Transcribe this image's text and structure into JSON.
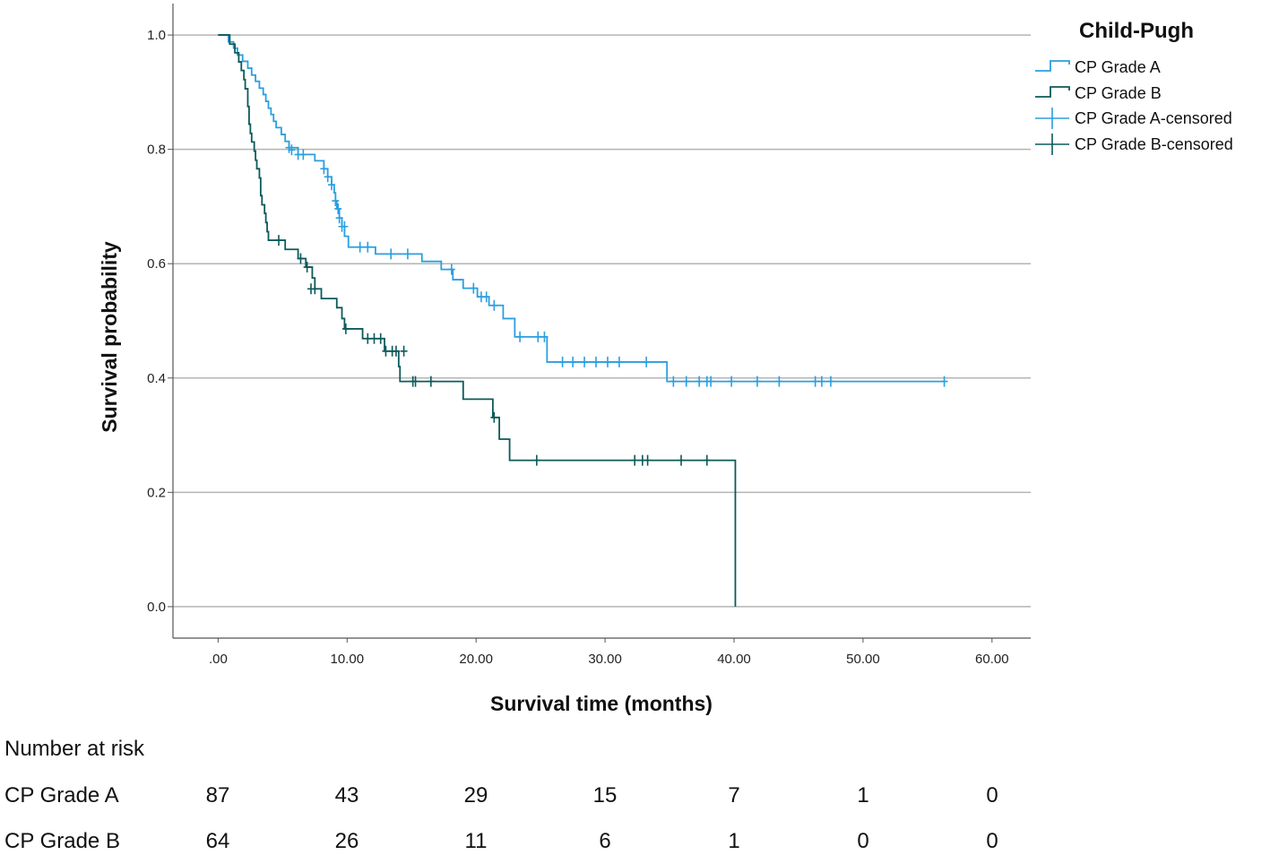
{
  "chart_data": {
    "type": "line",
    "subtype": "kaplan-meier",
    "xlabel": "Survival time (months)",
    "ylabel": "Survival probability",
    "xlim": [
      -3.5,
      63
    ],
    "ylim": [
      -0.055,
      1.055
    ],
    "x_ticks": [
      0,
      10,
      20,
      30,
      40,
      50,
      60
    ],
    "x_tick_labels": [
      ".00",
      "10.00",
      "20.00",
      "30.00",
      "40.00",
      "50.00",
      "60.00"
    ],
    "y_ticks": [
      0,
      0.2,
      0.4,
      0.6,
      0.8,
      1.0
    ],
    "y_tick_labels": [
      "0.0",
      "0.2",
      "0.4",
      "0.6",
      "0.8",
      "1.0"
    ],
    "grid": "horizontal",
    "legend": {
      "title": "Child-Pugh",
      "position": "top-right",
      "entries": [
        "CP Grade A",
        "CP Grade B",
        "CP Grade A-censored",
        "CP Grade B-censored"
      ]
    },
    "series": [
      {
        "name": "CP Grade A",
        "color": "#2a9fe0",
        "steps": [
          [
            0,
            1.0
          ],
          [
            0.8,
            0.988
          ],
          [
            1.2,
            0.977
          ],
          [
            1.5,
            0.965
          ],
          [
            1.9,
            0.954
          ],
          [
            2.3,
            0.942
          ],
          [
            2.6,
            0.93
          ],
          [
            2.9,
            0.919
          ],
          [
            3.2,
            0.907
          ],
          [
            3.5,
            0.896
          ],
          [
            3.7,
            0.884
          ],
          [
            3.9,
            0.872
          ],
          [
            4.1,
            0.861
          ],
          [
            4.3,
            0.849
          ],
          [
            4.5,
            0.838
          ],
          [
            4.9,
            0.826
          ],
          [
            5.2,
            0.814
          ],
          [
            5.5,
            0.803
          ],
          [
            6.2,
            0.791
          ],
          [
            7.5,
            0.78
          ],
          [
            8.2,
            0.766
          ],
          [
            8.5,
            0.752
          ],
          [
            8.8,
            0.738
          ],
          [
            9.0,
            0.724
          ],
          [
            9.1,
            0.71
          ],
          [
            9.2,
            0.696
          ],
          [
            9.4,
            0.68
          ],
          [
            9.6,
            0.665
          ],
          [
            9.8,
            0.648
          ],
          [
            10.1,
            0.629
          ],
          [
            12.2,
            0.617
          ],
          [
            15.8,
            0.604
          ],
          [
            17.3,
            0.59
          ],
          [
            18.2,
            0.572
          ],
          [
            19.0,
            0.557
          ],
          [
            20.1,
            0.542
          ],
          [
            21.0,
            0.527
          ],
          [
            22.1,
            0.504
          ],
          [
            23.0,
            0.472
          ],
          [
            25.5,
            0.428
          ],
          [
            34.8,
            0.394
          ],
          [
            56.3,
            0.394
          ]
        ],
        "censored": [
          [
            5.5,
            0.803
          ],
          [
            5.7,
            0.799
          ],
          [
            6.2,
            0.791
          ],
          [
            6.6,
            0.791
          ],
          [
            8.2,
            0.766
          ],
          [
            8.5,
            0.752
          ],
          [
            8.8,
            0.738
          ],
          [
            9.1,
            0.71
          ],
          [
            9.3,
            0.696
          ],
          [
            9.4,
            0.68
          ],
          [
            9.6,
            0.665
          ],
          [
            9.8,
            0.665
          ],
          [
            11.0,
            0.629
          ],
          [
            11.6,
            0.629
          ],
          [
            13.4,
            0.617
          ],
          [
            14.7,
            0.617
          ],
          [
            18.1,
            0.59
          ],
          [
            19.8,
            0.557
          ],
          [
            20.4,
            0.542
          ],
          [
            20.8,
            0.542
          ],
          [
            21.4,
            0.527
          ],
          [
            23.4,
            0.472
          ],
          [
            24.8,
            0.472
          ],
          [
            25.3,
            0.472
          ],
          [
            26.7,
            0.428
          ],
          [
            27.5,
            0.428
          ],
          [
            28.4,
            0.428
          ],
          [
            29.3,
            0.428
          ],
          [
            30.2,
            0.428
          ],
          [
            31.1,
            0.428
          ],
          [
            33.2,
            0.428
          ],
          [
            35.3,
            0.394
          ],
          [
            36.3,
            0.394
          ],
          [
            37.3,
            0.394
          ],
          [
            37.9,
            0.394
          ],
          [
            38.2,
            0.394
          ],
          [
            39.8,
            0.394
          ],
          [
            41.8,
            0.394
          ],
          [
            43.5,
            0.394
          ],
          [
            46.3,
            0.394
          ],
          [
            46.8,
            0.394
          ],
          [
            47.5,
            0.394
          ],
          [
            56.3,
            0.394
          ]
        ]
      },
      {
        "name": "CP Grade B",
        "color": "#0d5a5a",
        "steps": [
          [
            0,
            1.0
          ],
          [
            0.9,
            0.984
          ],
          [
            1.3,
            0.969
          ],
          [
            1.6,
            0.953
          ],
          [
            1.8,
            0.938
          ],
          [
            2.0,
            0.922
          ],
          [
            2.1,
            0.906
          ],
          [
            2.3,
            0.875
          ],
          [
            2.4,
            0.844
          ],
          [
            2.5,
            0.828
          ],
          [
            2.6,
            0.813
          ],
          [
            2.8,
            0.797
          ],
          [
            2.9,
            0.781
          ],
          [
            3.0,
            0.766
          ],
          [
            3.2,
            0.75
          ],
          [
            3.3,
            0.719
          ],
          [
            3.4,
            0.703
          ],
          [
            3.6,
            0.688
          ],
          [
            3.7,
            0.672
          ],
          [
            3.8,
            0.656
          ],
          [
            3.9,
            0.641
          ],
          [
            5.2,
            0.625
          ],
          [
            6.2,
            0.609
          ],
          [
            6.8,
            0.594
          ],
          [
            7.3,
            0.575
          ],
          [
            7.5,
            0.556
          ],
          [
            8.0,
            0.539
          ],
          [
            9.2,
            0.523
          ],
          [
            9.6,
            0.504
          ],
          [
            9.8,
            0.486
          ],
          [
            11.2,
            0.469
          ],
          [
            12.9,
            0.447
          ],
          [
            14.0,
            0.42
          ],
          [
            14.1,
            0.394
          ],
          [
            19.0,
            0.363
          ],
          [
            21.3,
            0.331
          ],
          [
            21.8,
            0.293
          ],
          [
            22.6,
            0.256
          ],
          [
            40.1,
            0.256
          ],
          [
            40.1,
            0.0
          ]
        ],
        "censored": [
          [
            4.7,
            0.641
          ],
          [
            6.4,
            0.609
          ],
          [
            6.9,
            0.594
          ],
          [
            7.2,
            0.556
          ],
          [
            7.5,
            0.556
          ],
          [
            9.9,
            0.486
          ],
          [
            11.6,
            0.469
          ],
          [
            12.1,
            0.469
          ],
          [
            12.6,
            0.469
          ],
          [
            13.0,
            0.447
          ],
          [
            13.5,
            0.447
          ],
          [
            13.8,
            0.447
          ],
          [
            14.4,
            0.447
          ],
          [
            15.1,
            0.394
          ],
          [
            15.3,
            0.394
          ],
          [
            16.5,
            0.394
          ],
          [
            21.4,
            0.331
          ],
          [
            24.7,
            0.256
          ],
          [
            32.3,
            0.256
          ],
          [
            32.9,
            0.256
          ],
          [
            33.3,
            0.256
          ],
          [
            35.9,
            0.256
          ],
          [
            37.9,
            0.256
          ]
        ]
      }
    ]
  },
  "risk_table": {
    "title": "Number at risk",
    "rows": [
      {
        "label": "CP Grade A",
        "values": [
          "87",
          "43",
          "29",
          "15",
          "7",
          "1",
          "0"
        ]
      },
      {
        "label": "CP Grade B",
        "values": [
          "64",
          "26",
          "11",
          "6",
          "1",
          "0",
          "0"
        ]
      }
    ]
  }
}
